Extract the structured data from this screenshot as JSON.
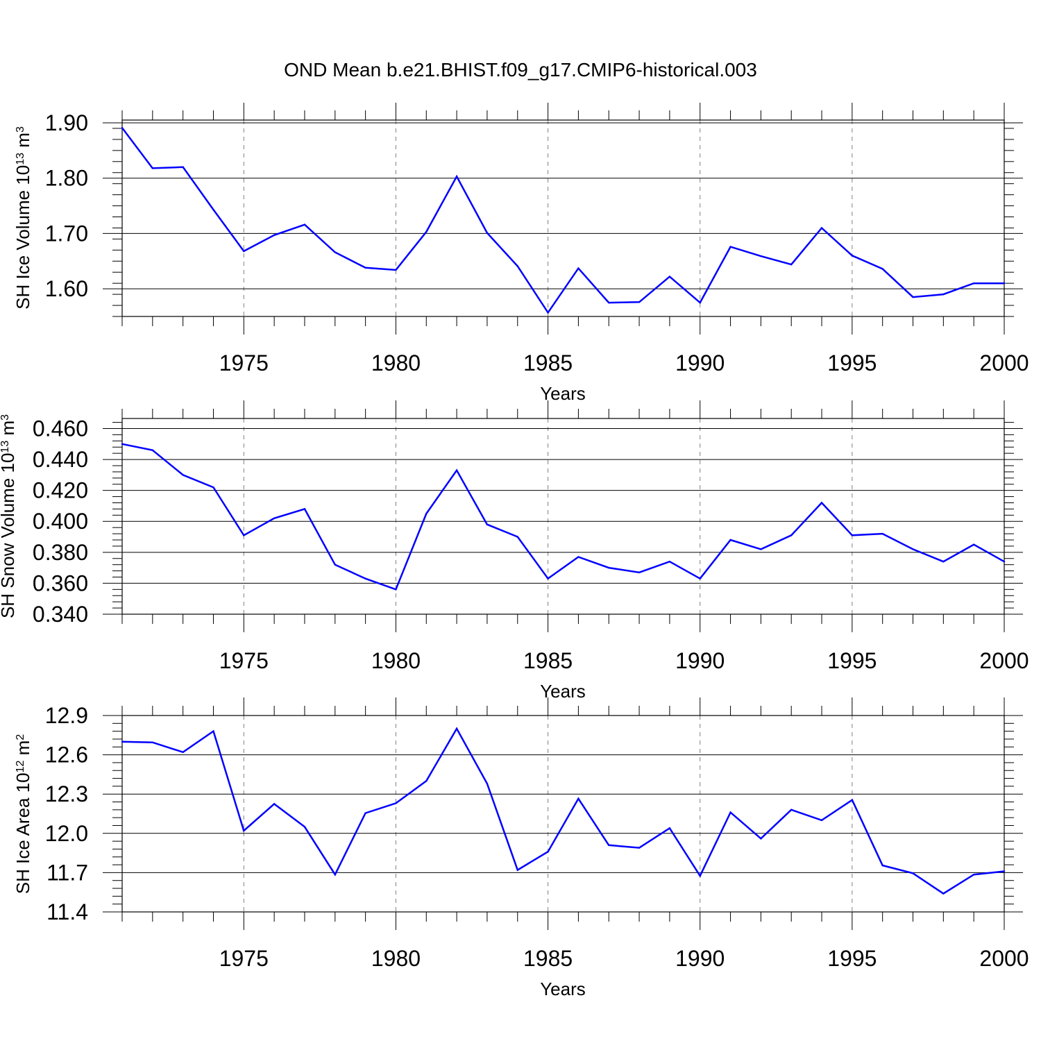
{
  "title": "OND Mean b.e21.BHIST.f09_g17.CMIP6-historical.003",
  "colors": {
    "line": "#0000ff",
    "axis": "#000000",
    "grid": "#808080",
    "background": "#ffffff"
  },
  "chart_data": [
    {
      "type": "line",
      "ylabel": {
        "prefix": "SH Ice Volume 10",
        "exponent": "13",
        "unit": " m",
        "unit_exponent": "3"
      },
      "xlabel": "Years",
      "xlim": [
        1971,
        2000
      ],
      "ylim": [
        1.55,
        1.905
      ],
      "yticks": [
        1.6,
        1.7,
        1.8,
        1.9
      ],
      "ytick_labels": [
        "1.60",
        "1.70",
        "1.80",
        "1.90"
      ],
      "y_minor_step": 0.02,
      "xticks": [
        1975,
        1980,
        1985,
        1990,
        1995,
        2000
      ],
      "xtick_labels": [
        "1975",
        "1980",
        "1985",
        "1990",
        "1995",
        "2000"
      ],
      "x": [
        1971,
        1972,
        1973,
        1974,
        1975,
        1976,
        1977,
        1978,
        1979,
        1980,
        1981,
        1982,
        1983,
        1984,
        1985,
        1986,
        1987,
        1988,
        1989,
        1990,
        1991,
        1992,
        1993,
        1994,
        1995,
        1996,
        1997,
        1998,
        1999,
        2000
      ],
      "values": [
        1.891,
        1.818,
        1.82,
        1.743,
        1.668,
        1.697,
        1.716,
        1.666,
        1.638,
        1.634,
        1.703,
        1.803,
        1.701,
        1.641,
        1.557,
        1.637,
        1.575,
        1.576,
        1.622,
        1.575,
        1.676,
        1.659,
        1.644,
        1.71,
        1.66,
        1.636,
        1.585,
        1.59,
        1.61,
        1.61
      ]
    },
    {
      "type": "line",
      "ylabel": {
        "prefix": "SH Snow Volume 10",
        "exponent": "13",
        "unit": " m",
        "unit_exponent": "3"
      },
      "xlabel": "Years",
      "xlim": [
        1971,
        2000
      ],
      "ylim": [
        0.34,
        0.4665
      ],
      "yticks": [
        0.34,
        0.36,
        0.38,
        0.4,
        0.42,
        0.44,
        0.46
      ],
      "ytick_labels": [
        "0.340",
        "0.360",
        "0.380",
        "0.400",
        "0.420",
        "0.440",
        "0.460"
      ],
      "y_minor_step": 0.004,
      "xticks": [
        1975,
        1980,
        1985,
        1990,
        1995,
        2000
      ],
      "xtick_labels": [
        "1975",
        "1980",
        "1985",
        "1990",
        "1995",
        "2000"
      ],
      "x": [
        1971,
        1972,
        1973,
        1974,
        1975,
        1976,
        1977,
        1978,
        1979,
        1980,
        1981,
        1982,
        1983,
        1984,
        1985,
        1986,
        1987,
        1988,
        1989,
        1990,
        1991,
        1992,
        1993,
        1994,
        1995,
        1996,
        1997,
        1998,
        1999,
        2000
      ],
      "values": [
        0.45,
        0.446,
        0.43,
        0.422,
        0.391,
        0.402,
        0.408,
        0.372,
        0.363,
        0.356,
        0.405,
        0.433,
        0.398,
        0.39,
        0.363,
        0.377,
        0.37,
        0.367,
        0.374,
        0.363,
        0.388,
        0.382,
        0.391,
        0.412,
        0.391,
        0.392,
        0.382,
        0.374,
        0.385,
        0.374
      ]
    },
    {
      "type": "line",
      "ylabel": {
        "prefix": "SH Ice Area 10",
        "exponent": "12",
        "unit": " m",
        "unit_exponent": "2"
      },
      "xlabel": "Years",
      "xlim": [
        1971,
        2000
      ],
      "ylim": [
        11.4,
        12.9
      ],
      "yticks": [
        11.4,
        11.7,
        12.0,
        12.3,
        12.6,
        12.9
      ],
      "ytick_labels": [
        "11.4",
        "11.7",
        "12.0",
        "12.3",
        "12.6",
        "12.9"
      ],
      "y_minor_step": 0.06,
      "xticks": [
        1975,
        1980,
        1985,
        1990,
        1995,
        2000
      ],
      "xtick_labels": [
        "1975",
        "1980",
        "1985",
        "1990",
        "1995",
        "2000"
      ],
      "x": [
        1971,
        1972,
        1973,
        1974,
        1975,
        1976,
        1977,
        1978,
        1979,
        1980,
        1981,
        1982,
        1983,
        1984,
        1985,
        1986,
        1987,
        1988,
        1989,
        1990,
        1991,
        1992,
        1993,
        1994,
        1995,
        1996,
        1997,
        1998,
        1999,
        2000
      ],
      "values": [
        12.7,
        12.695,
        12.62,
        12.78,
        12.02,
        12.225,
        12.05,
        11.685,
        12.155,
        12.23,
        12.4,
        12.8,
        12.38,
        11.72,
        11.86,
        12.265,
        11.91,
        11.89,
        12.04,
        11.675,
        12.16,
        11.96,
        12.18,
        12.1,
        12.255,
        11.755,
        11.695,
        11.54,
        11.685,
        11.71
      ]
    }
  ]
}
